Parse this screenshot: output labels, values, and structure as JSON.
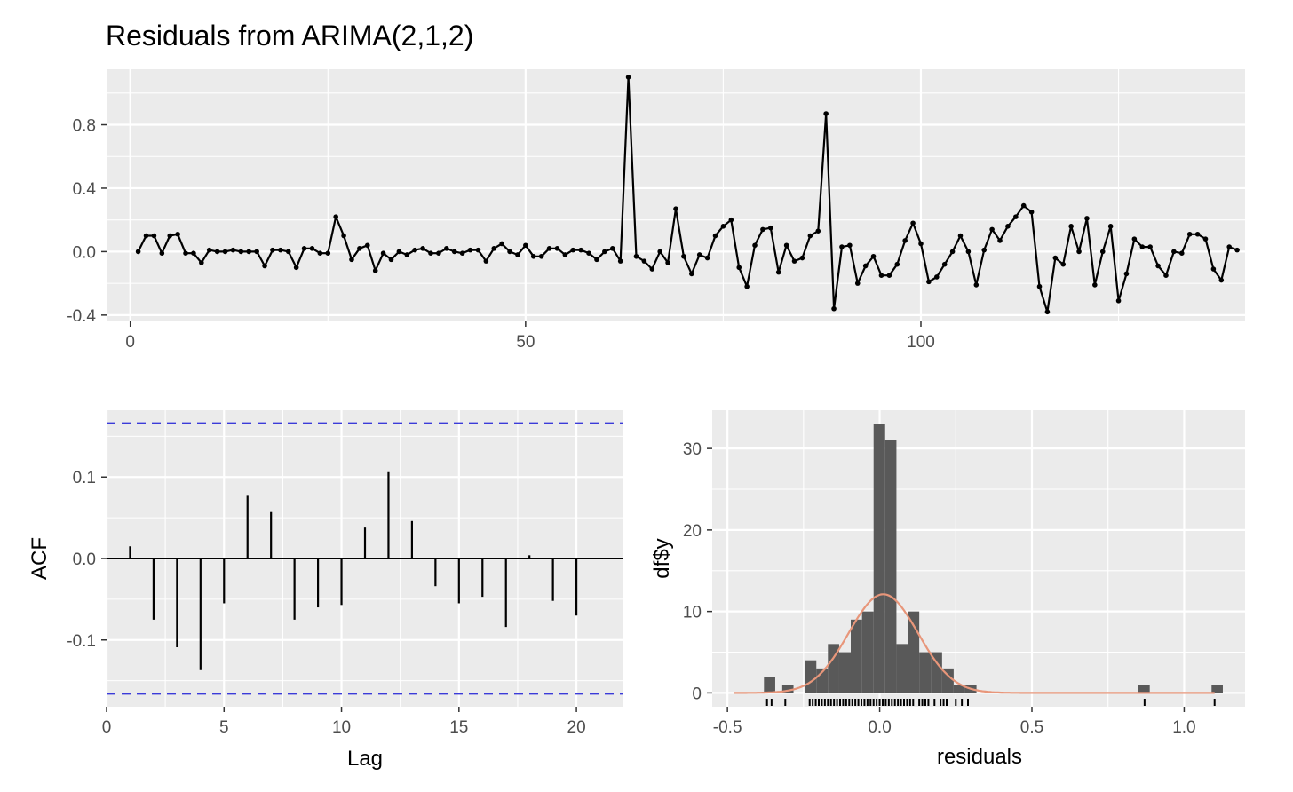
{
  "title": "Residuals from ARIMA(2,1,2)",
  "colors": {
    "panel": "#ebebeb",
    "grid": "#ffffff",
    "line": "#000000",
    "bars": "#595959",
    "ci": "#3b3bd9",
    "density": "#e8967a",
    "tick": "#4d4d4d"
  },
  "chart_data": [
    {
      "name": "residual-series",
      "type": "line",
      "title": "Residuals from ARIMA(2,1,2)",
      "xlabel": "",
      "ylabel": "",
      "xlim": [
        -3,
        141
      ],
      "ylim": [
        -0.44,
        1.15
      ],
      "xticks": [
        {
          "v": 0,
          "label": "0"
        },
        {
          "v": 50,
          "label": "50"
        },
        {
          "v": 100,
          "label": "100"
        }
      ],
      "yticks": [
        {
          "v": 0.8,
          "label": "0.8"
        },
        {
          "v": 0.4,
          "label": "0.4"
        },
        {
          "v": 0.0,
          "label": "0.0"
        },
        {
          "v": -0.4,
          "label": "-0.4"
        }
      ],
      "x_start": 1,
      "values": [
        0.0,
        0.1,
        0.1,
        -0.01,
        0.1,
        0.11,
        -0.01,
        -0.01,
        -0.07,
        0.01,
        0.0,
        0.0,
        0.01,
        0.0,
        0.0,
        0.0,
        -0.09,
        0.01,
        0.01,
        0.0,
        -0.1,
        0.02,
        0.02,
        -0.01,
        -0.01,
        0.22,
        0.1,
        -0.05,
        0.02,
        0.04,
        -0.12,
        -0.01,
        -0.05,
        0.0,
        -0.02,
        0.01,
        0.02,
        -0.01,
        -0.01,
        0.02,
        0.0,
        -0.01,
        0.01,
        0.01,
        -0.06,
        0.02,
        0.05,
        0.0,
        -0.02,
        0.04,
        -0.03,
        -0.03,
        0.02,
        0.02,
        -0.02,
        0.01,
        0.01,
        -0.01,
        -0.05,
        0.0,
        0.02,
        -0.06,
        1.1,
        -0.03,
        -0.06,
        -0.11,
        0.0,
        -0.07,
        0.27,
        -0.03,
        -0.14,
        -0.02,
        -0.04,
        0.1,
        0.16,
        0.2,
        -0.1,
        -0.22,
        0.04,
        0.14,
        0.15,
        -0.13,
        0.04,
        -0.06,
        -0.04,
        0.1,
        0.13,
        0.87,
        -0.36,
        0.03,
        0.04,
        -0.2,
        -0.09,
        -0.03,
        -0.15,
        -0.15,
        -0.08,
        0.07,
        0.18,
        0.05,
        -0.19,
        -0.16,
        -0.08,
        0.0,
        0.1,
        0.0,
        -0.21,
        0.01,
        0.14,
        0.07,
        0.16,
        0.22,
        0.29,
        0.25,
        -0.22,
        -0.38,
        -0.04,
        -0.08,
        0.16,
        0.0,
        0.21,
        -0.21,
        0.0,
        0.16,
        -0.31,
        -0.14,
        0.08,
        0.03,
        0.03,
        -0.09,
        -0.15,
        0.0,
        -0.01,
        0.11,
        0.11,
        0.08,
        -0.11,
        -0.18,
        0.03,
        0.01
      ]
    },
    {
      "name": "acf",
      "type": "bar",
      "xlabel": "Lag",
      "ylabel": "ACF",
      "xlim": [
        0,
        22
      ],
      "ylim": [
        -0.182,
        0.182
      ],
      "xticks": [
        {
          "v": 0,
          "label": "0"
        },
        {
          "v": 5,
          "label": "5"
        },
        {
          "v": 10,
          "label": "10"
        },
        {
          "v": 15,
          "label": "15"
        },
        {
          "v": 20,
          "label": "20"
        }
      ],
      "yticks": [
        {
          "v": 0.1,
          "label": "0.1"
        },
        {
          "v": 0.0,
          "label": "0.0"
        },
        {
          "v": -0.1,
          "label": "-0.1"
        }
      ],
      "confidence_bound": 0.166,
      "lags": [
        1,
        2,
        3,
        4,
        5,
        6,
        7,
        8,
        9,
        10,
        11,
        12,
        13,
        14,
        15,
        16,
        17,
        18,
        19,
        20,
        21
      ],
      "values": [
        0.015,
        -0.075,
        -0.109,
        -0.137,
        -0.055,
        0.077,
        0.057,
        -0.075,
        -0.06,
        -0.057,
        0.038,
        0.106,
        0.046,
        -0.034,
        -0.055,
        -0.047,
        -0.084,
        0.004,
        -0.052,
        -0.07,
        0.001
      ]
    },
    {
      "name": "residual-histogram",
      "type": "bar",
      "xlabel": "residuals",
      "ylabel": "df$y",
      "xlim": [
        -0.55,
        1.2
      ],
      "ylim": [
        -1.7,
        34.7
      ],
      "xticks": [
        {
          "v": -0.5,
          "label": "-0.5"
        },
        {
          "v": 0.0,
          "label": "0.0"
        },
        {
          "v": 0.5,
          "label": "0.5"
        },
        {
          "v": 1.0,
          "label": "1.0"
        }
      ],
      "yticks": [
        {
          "v": 0,
          "label": "0"
        },
        {
          "v": 10,
          "label": "10"
        },
        {
          "v": 20,
          "label": "20"
        },
        {
          "v": 30,
          "label": "30"
        }
      ],
      "bins": [
        {
          "x0": -0.38,
          "x1": -0.343,
          "count": 2
        },
        {
          "x0": -0.32,
          "x1": -0.283,
          "count": 1
        },
        {
          "x0": -0.245,
          "x1": -0.208,
          "count": 4
        },
        {
          "x0": -0.208,
          "x1": -0.17,
          "count": 3
        },
        {
          "x0": -0.17,
          "x1": -0.133,
          "count": 6
        },
        {
          "x0": -0.133,
          "x1": -0.095,
          "count": 5
        },
        {
          "x0": -0.095,
          "x1": -0.058,
          "count": 9
        },
        {
          "x0": -0.058,
          "x1": -0.02,
          "count": 10
        },
        {
          "x0": -0.02,
          "x1": 0.018,
          "count": 33
        },
        {
          "x0": 0.018,
          "x1": 0.055,
          "count": 31
        },
        {
          "x0": 0.055,
          "x1": 0.093,
          "count": 6
        },
        {
          "x0": 0.093,
          "x1": 0.13,
          "count": 10
        },
        {
          "x0": 0.13,
          "x1": 0.168,
          "count": 5
        },
        {
          "x0": 0.168,
          "x1": 0.205,
          "count": 5
        },
        {
          "x0": 0.205,
          "x1": 0.243,
          "count": 3
        },
        {
          "x0": 0.243,
          "x1": 0.28,
          "count": 1
        },
        {
          "x0": 0.28,
          "x1": 0.318,
          "count": 1
        },
        {
          "x0": 0.85,
          "x1": 0.887,
          "count": 1
        },
        {
          "x0": 1.09,
          "x1": 1.127,
          "count": 1
        }
      ],
      "density": {
        "mean": 0.012,
        "sd": 0.114,
        "scale": 3.46,
        "from": -0.48,
        "to": 1.1
      },
      "rug": [
        -0.37,
        -0.355,
        -0.31,
        -0.23,
        -0.22,
        -0.21,
        -0.2,
        -0.19,
        -0.18,
        -0.17,
        -0.16,
        -0.15,
        -0.14,
        -0.13,
        -0.12,
        -0.11,
        -0.1,
        -0.09,
        -0.08,
        -0.07,
        -0.06,
        -0.05,
        -0.04,
        -0.03,
        -0.02,
        -0.01,
        0.0,
        0.01,
        0.02,
        0.03,
        0.04,
        0.05,
        0.06,
        0.07,
        0.08,
        0.09,
        0.1,
        0.11,
        0.13,
        0.14,
        0.15,
        0.16,
        0.18,
        0.2,
        0.21,
        0.22,
        0.25,
        0.27,
        0.29,
        0.87,
        1.1
      ]
    }
  ]
}
